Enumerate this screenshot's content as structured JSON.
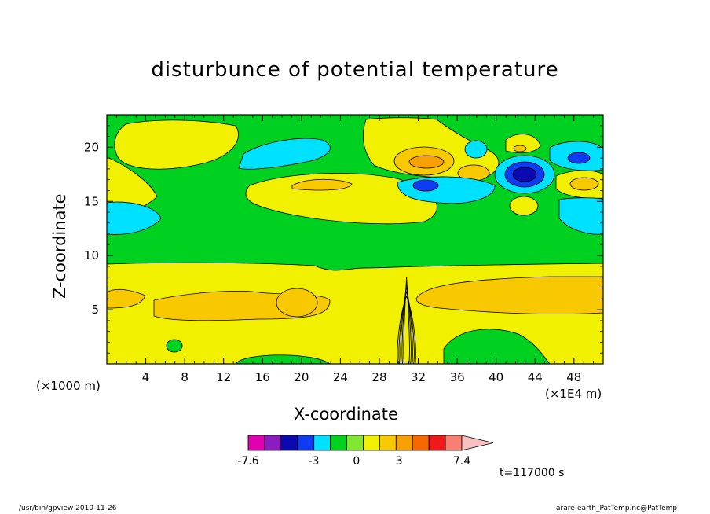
{
  "title": "disturbunce of potential temperature",
  "x_unit_note": "(×1000 m)",
  "x_scale_note": "(×1E4 m)",
  "colors": [
    "#e000b0",
    "#8a1cc0",
    "#0a0ab0",
    "#0f3cf0",
    "#00e0ff",
    "#00d020",
    "#80e830",
    "#f0f000",
    "#f8c800",
    "#f8a000",
    "#f86800",
    "#f01818",
    "#f88070",
    "#f8c0c0"
  ],
  "chart_data": {
    "type": "contour",
    "title": "disturbunce of potential temperature",
    "xlabel": "X-coordinate",
    "ylabel": "Z-coordinate",
    "xlim": [
      0,
      51
    ],
    "ylim": [
      0,
      23
    ],
    "xticks": [
      4,
      8,
      12,
      16,
      20,
      24,
      28,
      32,
      36,
      40,
      44,
      48
    ],
    "yticks": [
      5,
      10,
      15,
      20
    ],
    "colorbar": {
      "levels": [
        -7.6,
        -3,
        0,
        3,
        7.4
      ],
      "labels": [
        "-7.6",
        "-3",
        "0",
        "3",
        "7.4"
      ]
    },
    "annotation": "t=117000 s"
  },
  "footer": {
    "left": "/usr/bin/gpview  2010-11-26",
    "right": "arare-earth_PatTemp.nc@PatTemp"
  }
}
